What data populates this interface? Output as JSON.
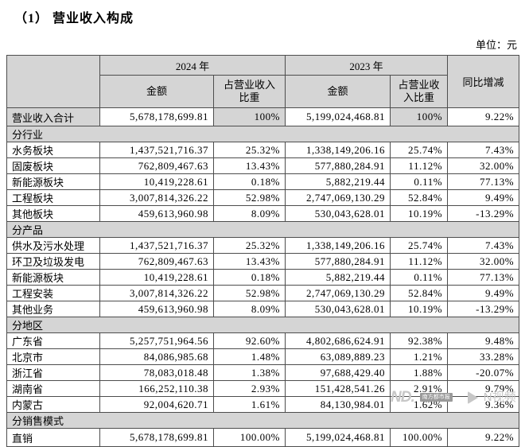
{
  "page": {
    "title": "（1） 营业收入构成",
    "unit_label": "单位：元"
  },
  "table": {
    "header": {
      "year_2024": "2024 年",
      "year_2023": "2023 年",
      "amount_2024": "金额",
      "ratio_2024": "占营业收入\n比重",
      "amount_2023": "金额",
      "ratio_2023": "占营业收\n入比重",
      "yoy": "同比增减"
    },
    "rows": [
      {
        "type": "total",
        "label": "营业收入合计",
        "a2024": "5,678,178,699.81",
        "r2024": "100%",
        "a2023": "5,199,024,468.81",
        "r2023": "100%",
        "yoy": "9.22%"
      },
      {
        "type": "section",
        "label": "分行业"
      },
      {
        "type": "data",
        "label": "水务板块",
        "a2024": "1,437,521,716.37",
        "r2024": "25.32%",
        "a2023": "1,338,149,206.16",
        "r2023": "25.74%",
        "yoy": "7.43%"
      },
      {
        "type": "data",
        "label": "固废板块",
        "a2024": "762,809,467.63",
        "r2024": "13.43%",
        "a2023": "577,880,284.91",
        "r2023": "11.12%",
        "yoy": "32.00%"
      },
      {
        "type": "data",
        "label": "新能源板块",
        "a2024": "10,419,228.61",
        "r2024": "0.18%",
        "a2023": "5,882,219.44",
        "r2023": "0.11%",
        "yoy": "77.13%"
      },
      {
        "type": "data",
        "label": "工程板块",
        "a2024": "3,007,814,326.22",
        "r2024": "52.98%",
        "a2023": "2,747,069,130.29",
        "r2023": "52.84%",
        "yoy": "9.49%"
      },
      {
        "type": "data",
        "label": "其他板块",
        "a2024": "459,613,960.98",
        "r2024": "8.09%",
        "a2023": "530,043,628.01",
        "r2023": "10.19%",
        "yoy": "-13.29%"
      },
      {
        "type": "section",
        "label": "分产品"
      },
      {
        "type": "data",
        "label": "供水及污水处理",
        "a2024": "1,437,521,716.37",
        "r2024": "25.32%",
        "a2023": "1,338,149,206.16",
        "r2023": "25.74%",
        "yoy": "7.43%"
      },
      {
        "type": "data",
        "label": "环卫及垃圾发电",
        "a2024": "762,809,467.63",
        "r2024": "13.43%",
        "a2023": "577,880,284.91",
        "r2023": "11.12%",
        "yoy": "32.00%"
      },
      {
        "type": "data",
        "label": "新能源板块",
        "a2024": "10,419,228.61",
        "r2024": "0.18%",
        "a2023": "5,882,219.44",
        "r2023": "0.11%",
        "yoy": "77.13%"
      },
      {
        "type": "data",
        "label": "工程安装",
        "a2024": "3,007,814,326.22",
        "r2024": "52.98%",
        "a2023": "2,747,069,130.29",
        "r2023": "52.84%",
        "yoy": "9.49%"
      },
      {
        "type": "data",
        "label": "其他业务",
        "a2024": "459,613,960.98",
        "r2024": "8.09%",
        "a2023": "530,043,628.01",
        "r2023": "10.19%",
        "yoy": "-13.29%"
      },
      {
        "type": "section",
        "label": "分地区"
      },
      {
        "type": "data",
        "label": "广东省",
        "a2024": "5,257,751,964.56",
        "r2024": "92.60%",
        "a2023": "4,802,686,624.91",
        "r2023": "92.38%",
        "yoy": "9.48%"
      },
      {
        "type": "data",
        "label": "北京市",
        "a2024": "84,086,985.68",
        "r2024": "1.48%",
        "a2023": "63,089,889.23",
        "r2023": "1.21%",
        "yoy": "33.28%"
      },
      {
        "type": "data",
        "label": "浙江省",
        "a2024": "78,083,018.48",
        "r2024": "1.38%",
        "a2023": "97,688,429.40",
        "r2023": "1.88%",
        "yoy": "-20.07%"
      },
      {
        "type": "data",
        "label": "湖南省",
        "a2024": "166,252,110.38",
        "r2024": "2.93%",
        "a2023": "151,428,541.26",
        "r2023": "2.91%",
        "yoy": "9.79%"
      },
      {
        "type": "data",
        "label": "内蒙古",
        "a2024": "92,004,620.71",
        "r2024": "1.61%",
        "a2023": "84,130,984.01",
        "r2023": "1.62%",
        "yoy": "9.36%"
      },
      {
        "type": "section",
        "label": "分销售模式"
      },
      {
        "type": "data",
        "last": true,
        "label": "直销",
        "a2024": "5,678,178,699.81",
        "r2024": "100.00%",
        "a2023": "5,199,024,468.81",
        "r2023": "100.00%",
        "yoy": "9.22%"
      }
    ]
  },
  "watermark": {
    "logo": "ND.",
    "badge": "南方都市报",
    "video_label": "N视频"
  }
}
